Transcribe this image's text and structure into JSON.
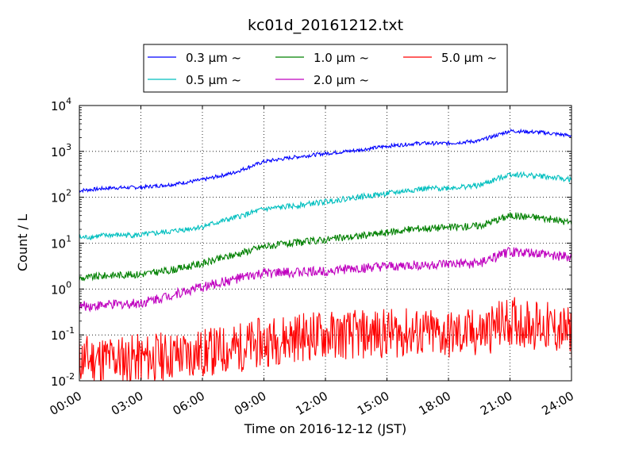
{
  "chart_data": {
    "type": "line",
    "title": "kc01d_20161212.txt",
    "xlabel": "Time on 2016-12-12 (JST)",
    "ylabel": "Count / L",
    "y_scale": "log",
    "ylim": [
      0.01,
      10000
    ],
    "xlim": [
      "00:00",
      "24:00"
    ],
    "x_tick_labels": [
      "00:00",
      "03:00",
      "06:00",
      "09:00",
      "12:00",
      "15:00",
      "18:00",
      "21:00",
      "24:00"
    ],
    "y_ticks": [
      {
        "base": "10",
        "exp": "-2"
      },
      {
        "base": "10",
        "exp": "-1"
      },
      {
        "base": "10",
        "exp": "0"
      },
      {
        "base": "10",
        "exp": "1"
      },
      {
        "base": "10",
        "exp": "2"
      },
      {
        "base": "10",
        "exp": "3"
      },
      {
        "base": "10",
        "exp": "4"
      }
    ],
    "grid": true,
    "legend_position": "top-center",
    "x_hours": [
      0,
      1.5,
      3,
      4.5,
      6,
      7.5,
      9,
      10.5,
      12,
      13.5,
      15,
      16.5,
      18,
      19.5,
      21,
      22.5,
      24
    ],
    "series": [
      {
        "name": "0.3 μm ~",
        "color": "#0000ff",
        "values": [
          140,
          160,
          165,
          190,
          240,
          340,
          600,
          750,
          900,
          1050,
          1300,
          1500,
          1500,
          1700,
          2800,
          2600,
          2200
        ]
      },
      {
        "name": "0.5 μm ~",
        "color": "#00bfbf",
        "values": [
          13,
          15,
          15,
          18,
          23,
          35,
          55,
          65,
          80,
          100,
          120,
          150,
          160,
          180,
          320,
          290,
          240
        ]
      },
      {
        "name": "1.0 μm ~",
        "color": "#008000",
        "values": [
          1.7,
          2.0,
          2.1,
          2.6,
          3.6,
          5.5,
          8.5,
          10,
          12,
          14,
          17,
          21,
          22,
          24,
          40,
          36,
          28
        ]
      },
      {
        "name": "2.0 μm ~",
        "color": "#bf00bf",
        "values": [
          0.42,
          0.45,
          0.5,
          0.75,
          1.1,
          1.6,
          2.2,
          2.3,
          2.5,
          2.8,
          3.0,
          3.3,
          3.4,
          3.6,
          6.5,
          5.8,
          4.8
        ]
      },
      {
        "name": "5.0 μm ~",
        "color": "#ff0000",
        "values": [
          0.03,
          0.03,
          0.03,
          0.035,
          0.04,
          0.05,
          0.07,
          0.09,
          0.1,
          0.1,
          0.11,
          0.11,
          0.1,
          0.11,
          0.2,
          0.16,
          0.11
        ]
      }
    ]
  }
}
